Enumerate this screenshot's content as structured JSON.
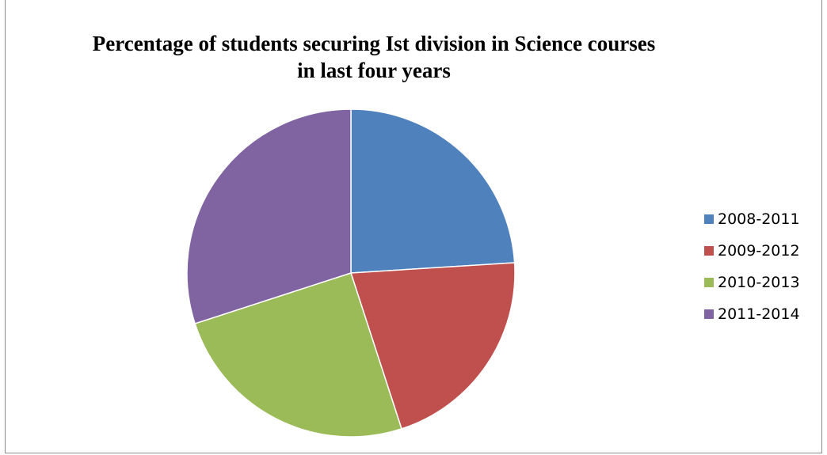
{
  "chart_data": {
    "type": "pie",
    "title": "Percentage of students securing Ist division in Science courses in last four years",
    "categories": [
      "2008-2011",
      "2009-2012",
      "2010-2013",
      "2011-2014"
    ],
    "values": [
      24,
      21,
      25,
      30
    ],
    "colors": [
      "#4F81BD",
      "#C0504D",
      "#9BBB59",
      "#8064A2"
    ],
    "start_angle_deg": 0,
    "direction": "clockwise",
    "legend_position": "right"
  }
}
